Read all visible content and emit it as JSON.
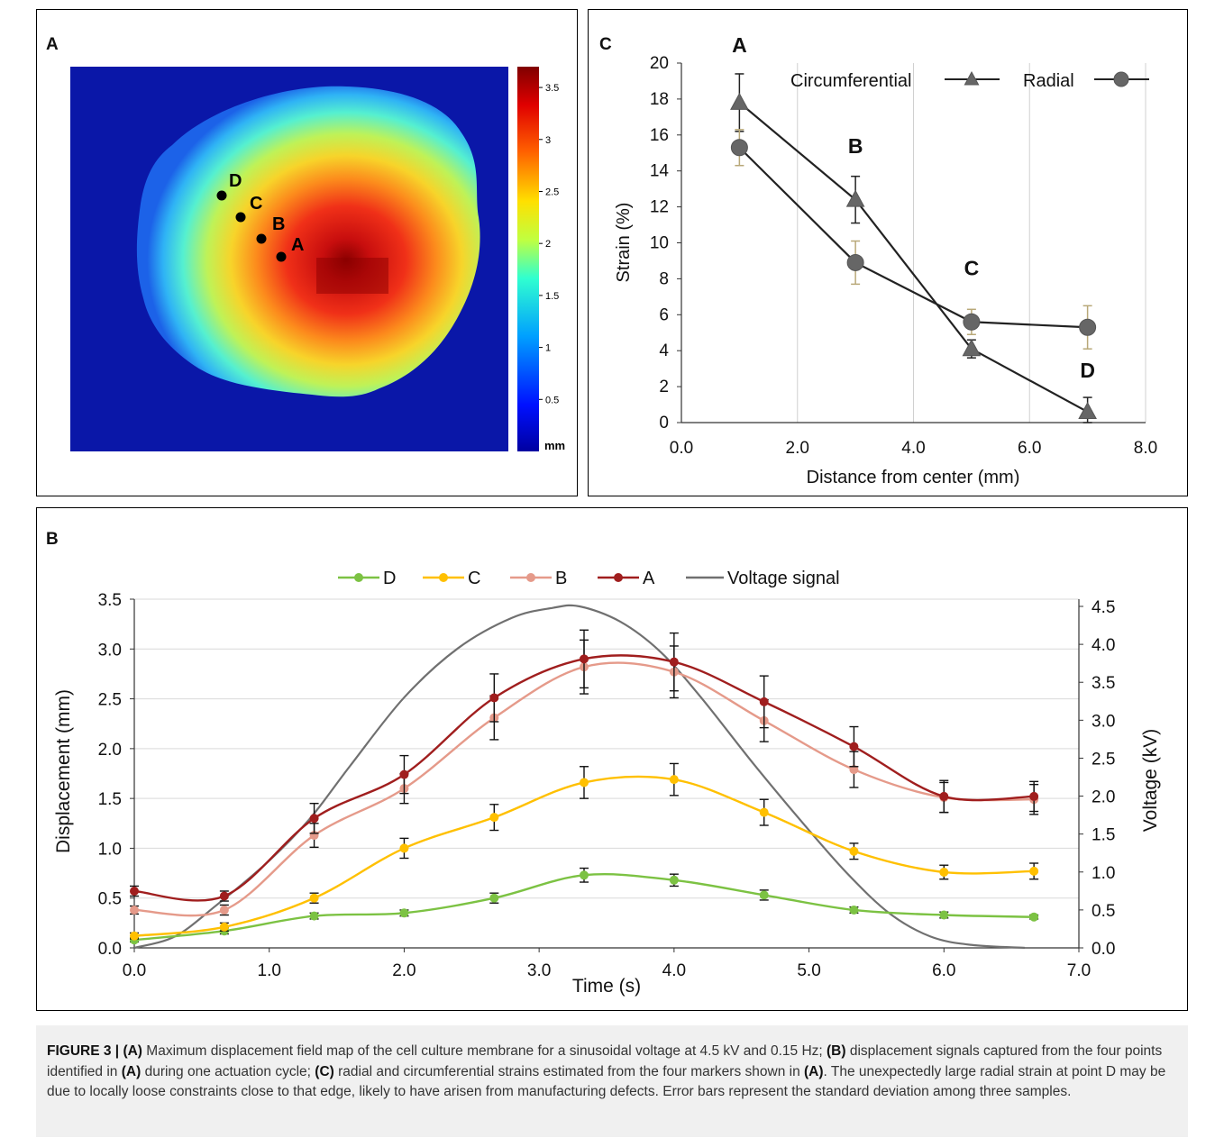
{
  "panels": {
    "a_label": "A",
    "b_label": "B",
    "c_label": "C"
  },
  "heatmap": {
    "colorbar_ticks": [
      "3.5",
      "3",
      "2.5",
      "2",
      "1.5",
      "1",
      "0.5"
    ],
    "colorbar_ticks_values": [
      3.5,
      3.0,
      2.5,
      2.0,
      1.5,
      1.0,
      0.5
    ],
    "colorbar_max": 3.7,
    "unit": "mm",
    "markers": [
      "A",
      "B",
      "C",
      "D"
    ],
    "colors": {
      "background": "#0a17a8",
      "max": "#8b0000"
    }
  },
  "chart_data": [
    {
      "panel": "C",
      "type": "line",
      "xlabel": "Distance from center (mm)",
      "ylabel": "Strain (%)",
      "xlim": [
        0,
        8
      ],
      "ylim": [
        0,
        20
      ],
      "xticks": [
        "0.0",
        "2.0",
        "4.0",
        "6.0",
        "8.0"
      ],
      "xticks_values": [
        0,
        2,
        4,
        6,
        8
      ],
      "yticks": [
        "0",
        "2",
        "4",
        "6",
        "8",
        "10",
        "12",
        "14",
        "16",
        "18",
        "20"
      ],
      "yticks_values": [
        0,
        2,
        4,
        6,
        8,
        10,
        12,
        14,
        16,
        18,
        20
      ],
      "grid": "vertical",
      "legend_position": "top-right",
      "point_labels": [
        "A",
        "B",
        "C",
        "D"
      ],
      "x": [
        1,
        3,
        5,
        7
      ],
      "series": [
        {
          "name": "Circumferential",
          "marker": "triangle",
          "values": [
            17.8,
            12.4,
            4.1,
            0.6
          ],
          "error": [
            1.6,
            1.3,
            0.5,
            0.8
          ],
          "color": "#333333"
        },
        {
          "name": "Radial",
          "marker": "circle",
          "values": [
            15.3,
            8.9,
            5.6,
            5.3
          ],
          "error": [
            1.0,
            1.2,
            0.7,
            1.2
          ],
          "color": "#333333"
        }
      ]
    },
    {
      "panel": "B",
      "type": "line",
      "xlabel": "Time (s)",
      "ylabel": "Displacement (mm)",
      "y2label": "Voltage (kV)",
      "xlim": [
        0,
        7
      ],
      "ylim": [
        0,
        3.5
      ],
      "y2lim": [
        0,
        4.5
      ],
      "xticks": [
        "0.0",
        "1.0",
        "2.0",
        "3.0",
        "4.0",
        "5.0",
        "6.0",
        "7.0"
      ],
      "xticks_values": [
        0,
        1,
        2,
        3,
        4,
        5,
        6,
        7
      ],
      "yticks": [
        "0.0",
        "0.5",
        "1.0",
        "1.5",
        "2.0",
        "2.5",
        "3.0",
        "3.5"
      ],
      "yticks_values": [
        0,
        0.5,
        1.0,
        1.5,
        2.0,
        2.5,
        3.0,
        3.5
      ],
      "y2ticks": [
        "0.0",
        "0.5",
        "1.0",
        "1.5",
        "2.0",
        "2.5",
        "3.0",
        "3.5",
        "4.0",
        "4.5"
      ],
      "y2ticks_values": [
        0,
        0.5,
        1.0,
        1.5,
        2.0,
        2.5,
        3.0,
        3.5,
        4.0,
        4.5
      ],
      "grid": "horizontal",
      "legend_position": "top",
      "x": [
        0,
        0.667,
        1.333,
        2.0,
        2.667,
        3.333,
        4.0,
        4.667,
        5.333,
        6.0,
        6.667
      ],
      "series": [
        {
          "name": "D",
          "color": "#7cc243",
          "values": [
            0.08,
            0.17,
            0.32,
            0.35,
            0.5,
            0.73,
            0.68,
            0.53,
            0.38,
            0.33,
            0.31
          ],
          "error": [
            0.02,
            0.03,
            0.03,
            0.03,
            0.05,
            0.07,
            0.06,
            0.05,
            0.03,
            0.03,
            0.02
          ]
        },
        {
          "name": "C",
          "color": "#ffc000",
          "values": [
            0.12,
            0.21,
            0.5,
            1.0,
            1.31,
            1.66,
            1.69,
            1.36,
            0.97,
            0.76,
            0.77
          ],
          "error": [
            0.03,
            0.04,
            0.05,
            0.1,
            0.13,
            0.16,
            0.16,
            0.13,
            0.08,
            0.07,
            0.08
          ]
        },
        {
          "name": "B",
          "color": "#e59a8a",
          "values": [
            0.38,
            0.38,
            1.13,
            1.6,
            2.31,
            2.82,
            2.77,
            2.28,
            1.79,
            1.51,
            1.49
          ],
          "error": [
            0.04,
            0.05,
            0.12,
            0.15,
            0.22,
            0.27,
            0.26,
            0.21,
            0.18,
            0.15,
            0.15
          ]
        },
        {
          "name": "A",
          "color": "#a01e1e",
          "values": [
            0.57,
            0.52,
            1.3,
            1.74,
            2.51,
            2.9,
            2.87,
            2.47,
            2.02,
            1.52,
            1.52
          ],
          "error": [
            0.05,
            0.05,
            0.15,
            0.19,
            0.24,
            0.29,
            0.29,
            0.26,
            0.2,
            0.16,
            0.15
          ]
        },
        {
          "name": "Voltage signal",
          "color": "#707070",
          "axis": "right",
          "x": [
            0,
            0.3,
            0.6,
            1.0,
            1.3,
            1.6,
            2.0,
            2.4,
            2.8,
            3.1,
            3.3,
            3.6,
            3.9,
            4.2,
            4.6,
            5.0,
            5.3,
            5.6,
            5.9,
            6.2,
            6.6
          ],
          "values": [
            0.0,
            0.15,
            0.55,
            1.15,
            1.7,
            2.4,
            3.3,
            3.95,
            4.35,
            4.48,
            4.5,
            4.3,
            3.9,
            3.3,
            2.4,
            1.55,
            0.95,
            0.45,
            0.15,
            0.04,
            0.0
          ]
        }
      ]
    }
  ],
  "caption": {
    "label": "FIGURE 3 |",
    "a_ref": "(A)",
    "text_1": " Maximum displacement field map of the cell culture membrane for a sinusoidal voltage at 4.5 kV and 0.15 Hz; ",
    "b_ref": "(B)",
    "text_2": " displacement signals captured from the four points identified in ",
    "a_ref2": "(A)",
    "text_3": " during one actuation cycle; ",
    "c_ref": "(C)",
    "text_4": " radial and circumferential strains estimated from the four markers shown in ",
    "a_ref3": "(A)",
    "text_5": ". The unexpectedly large radial strain at point D may be due to locally loose constraints close to that edge, likely to have arisen from manufacturing defects. Error bars represent the standard deviation among three samples."
  }
}
